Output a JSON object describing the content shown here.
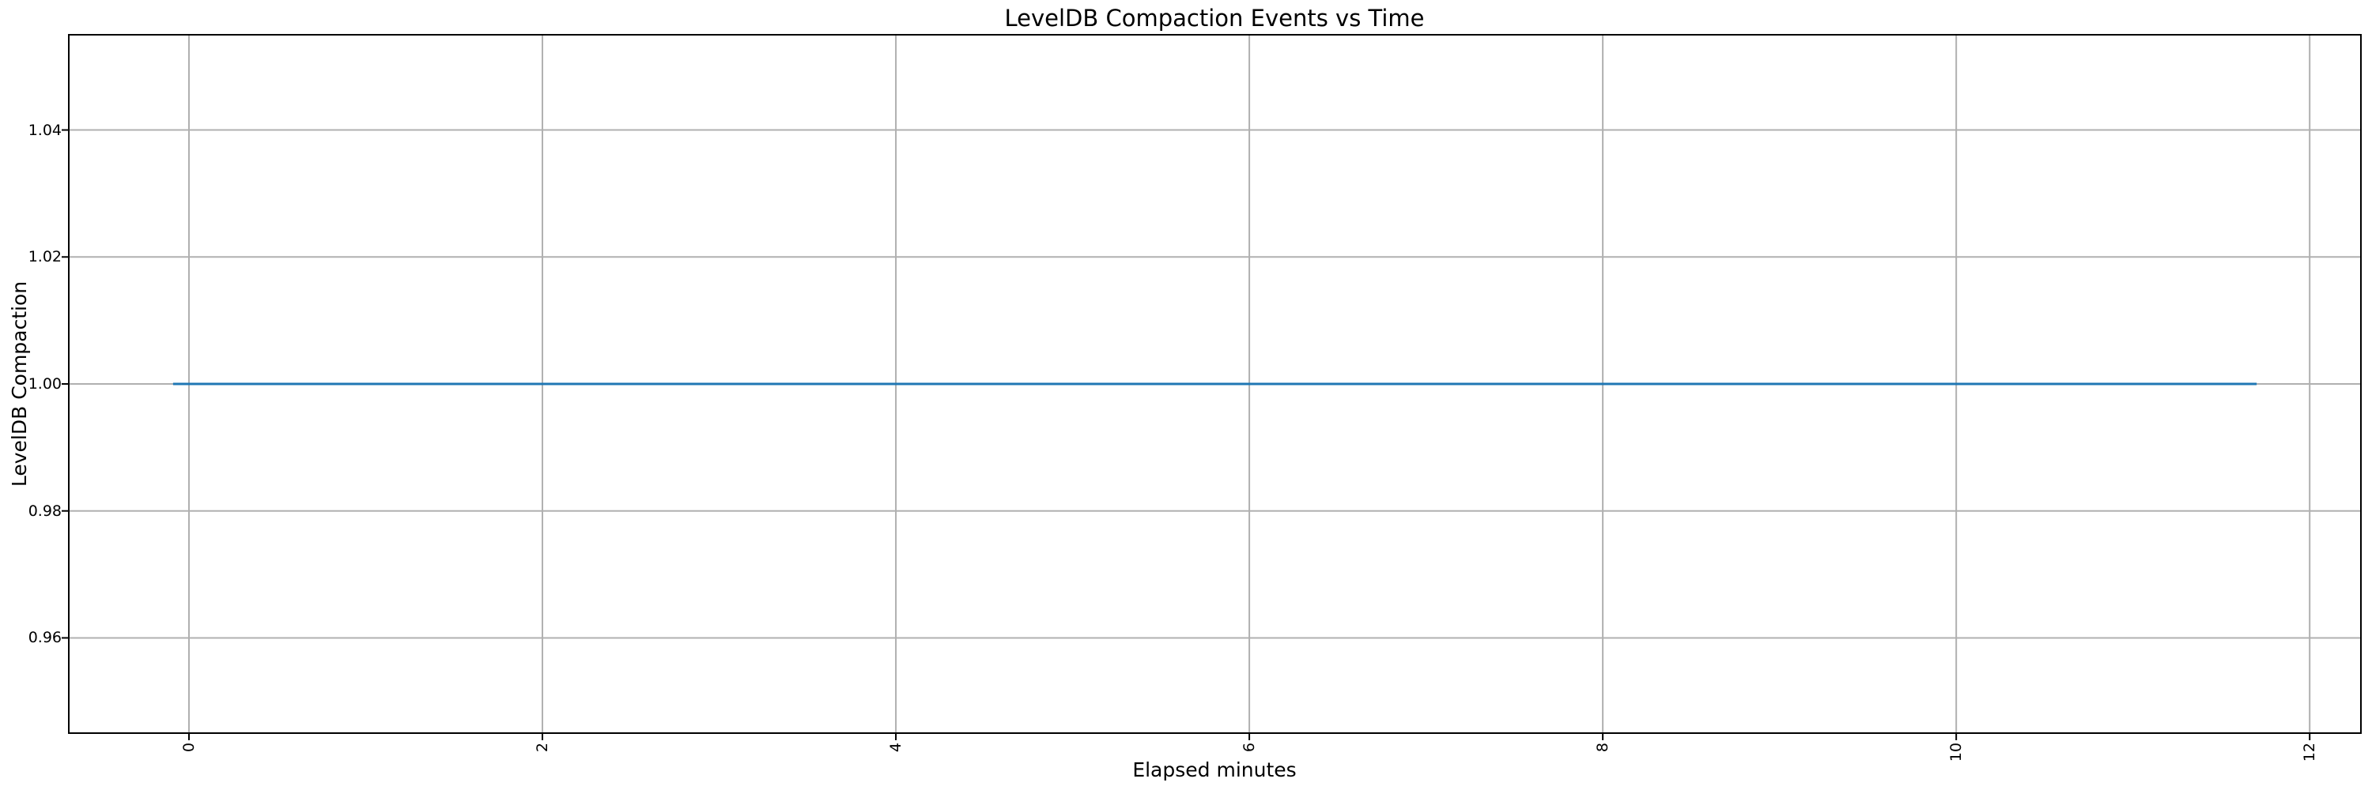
{
  "chart_data": {
    "type": "line",
    "title": "LevelDB Compaction Events vs Time",
    "xlabel": "Elapsed minutes",
    "ylabel": "LevelDB Compaction",
    "xlim": [
      -0.68,
      12.29
    ],
    "ylim": [
      0.945,
      1.055
    ],
    "x_ticks": [
      0,
      2,
      4,
      6,
      8,
      10,
      12
    ],
    "x_tick_labels": [
      "0",
      "2",
      "4",
      "6",
      "8",
      "10",
      "12"
    ],
    "x_tick_rotation": 90,
    "y_ticks": [
      0.96,
      0.98,
      1.0,
      1.02,
      1.04
    ],
    "y_tick_labels": [
      "0.96",
      "0.98",
      "1.00",
      "1.02",
      "1.04"
    ],
    "grid": true,
    "grid_color": "#b0b0b0",
    "spine_color": "#000000",
    "line_color": "#1f77b4",
    "series": [
      {
        "name": "LevelDB Compaction",
        "x": [
          -0.09,
          11.7
        ],
        "y": [
          1.0,
          1.0
        ]
      }
    ]
  }
}
